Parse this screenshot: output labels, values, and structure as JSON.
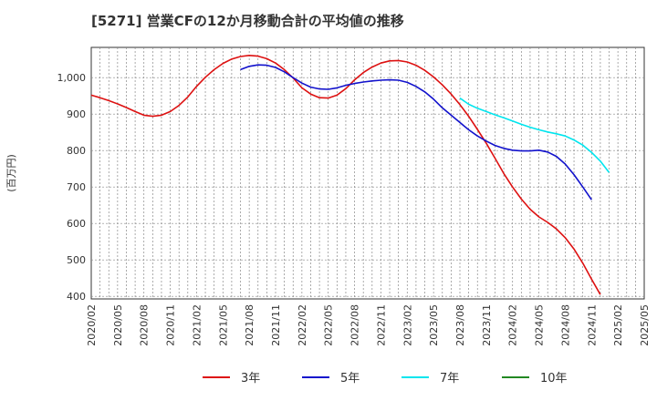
{
  "chart_data": {
    "type": "line",
    "title": "[5271]  営業CFの12か月移動合計の平均値の推移",
    "ylabel": "(百万円)",
    "xlabel": "",
    "ylim": [
      393,
      1083
    ],
    "yticks": [
      400,
      500,
      600,
      700,
      800,
      900,
      1000
    ],
    "ytick_labels": [
      "400",
      "500",
      "600",
      "700",
      "800",
      "900",
      "1,000"
    ],
    "x_range": [
      "2020-02",
      "2025-05"
    ],
    "xticks": [
      "2020/02",
      "2020/05",
      "2020/08",
      "2020/11",
      "2021/02",
      "2021/05",
      "2021/08",
      "2021/11",
      "2022/02",
      "2022/05",
      "2022/08",
      "2022/11",
      "2023/02",
      "2023/05",
      "2023/08",
      "2023/11",
      "2024/02",
      "2024/05",
      "2024/08",
      "2024/11",
      "2025/02",
      "2025/05"
    ],
    "grid": true,
    "legend_position": "bottom",
    "series": [
      {
        "name": "3年",
        "color": "#dd1111",
        "points": [
          [
            "2020-02",
            952
          ],
          [
            "2020-03",
            945
          ],
          [
            "2020-04",
            937
          ],
          [
            "2020-05",
            928
          ],
          [
            "2020-06",
            918
          ],
          [
            "2020-07",
            907
          ],
          [
            "2020-08",
            897
          ],
          [
            "2020-09",
            894
          ],
          [
            "2020-10",
            897
          ],
          [
            "2020-11",
            907
          ],
          [
            "2020-12",
            924
          ],
          [
            "2021-01",
            947
          ],
          [
            "2021-02",
            976
          ],
          [
            "2021-03",
            1001
          ],
          [
            "2021-04",
            1022
          ],
          [
            "2021-05",
            1039
          ],
          [
            "2021-06",
            1051
          ],
          [
            "2021-07",
            1058
          ],
          [
            "2021-08",
            1061
          ],
          [
            "2021-09",
            1059
          ],
          [
            "2021-10",
            1052
          ],
          [
            "2021-11",
            1040
          ],
          [
            "2021-12",
            1022
          ],
          [
            "2022-01",
            999
          ],
          [
            "2022-02",
            972
          ],
          [
            "2022-03",
            955
          ],
          [
            "2022-04",
            945
          ],
          [
            "2022-05",
            944
          ],
          [
            "2022-06",
            952
          ],
          [
            "2022-07",
            970
          ],
          [
            "2022-08",
            994
          ],
          [
            "2022-09",
            1014
          ],
          [
            "2022-10",
            1029
          ],
          [
            "2022-11",
            1040
          ],
          [
            "2022-12",
            1046
          ],
          [
            "2023-01",
            1047
          ],
          [
            "2023-02",
            1043
          ],
          [
            "2023-03",
            1034
          ],
          [
            "2023-04",
            1020
          ],
          [
            "2023-05",
            1002
          ],
          [
            "2023-06",
            980
          ],
          [
            "2023-07",
            955
          ],
          [
            "2023-08",
            926
          ],
          [
            "2023-09",
            894
          ],
          [
            "2023-10",
            858
          ],
          [
            "2023-11",
            820
          ],
          [
            "2023-12",
            779
          ],
          [
            "2024-01",
            737
          ],
          [
            "2024-02",
            700
          ],
          [
            "2024-03",
            667
          ],
          [
            "2024-04",
            639
          ],
          [
            "2024-05",
            618
          ],
          [
            "2024-06",
            603
          ],
          [
            "2024-07",
            585
          ],
          [
            "2024-08",
            561
          ],
          [
            "2024-09",
            530
          ],
          [
            "2024-10",
            491
          ],
          [
            "2024-11",
            447
          ],
          [
            "2024-12",
            405
          ]
        ]
      },
      {
        "name": "5年",
        "color": "#1111cc",
        "points": [
          [
            "2021-07",
            1022
          ],
          [
            "2021-08",
            1031
          ],
          [
            "2021-09",
            1035
          ],
          [
            "2021-10",
            1034
          ],
          [
            "2021-11",
            1028
          ],
          [
            "2021-12",
            1016
          ],
          [
            "2022-01",
            1000
          ],
          [
            "2022-02",
            985
          ],
          [
            "2022-03",
            974
          ],
          [
            "2022-04",
            969
          ],
          [
            "2022-05",
            968
          ],
          [
            "2022-06",
            972
          ],
          [
            "2022-07",
            979
          ],
          [
            "2022-08",
            984
          ],
          [
            "2022-09",
            988
          ],
          [
            "2022-10",
            991
          ],
          [
            "2022-11",
            993
          ],
          [
            "2022-12",
            994
          ],
          [
            "2023-01",
            993
          ],
          [
            "2023-02",
            987
          ],
          [
            "2023-03",
            976
          ],
          [
            "2023-04",
            961
          ],
          [
            "2023-05",
            941
          ],
          [
            "2023-06",
            917
          ],
          [
            "2023-07",
            897
          ],
          [
            "2023-08",
            877
          ],
          [
            "2023-09",
            857
          ],
          [
            "2023-10",
            840
          ],
          [
            "2023-11",
            826
          ],
          [
            "2023-12",
            814
          ],
          [
            "2024-01",
            806
          ],
          [
            "2024-02",
            801
          ],
          [
            "2024-03",
            799
          ],
          [
            "2024-04",
            799
          ],
          [
            "2024-05",
            801
          ],
          [
            "2024-06",
            796
          ],
          [
            "2024-07",
            784
          ],
          [
            "2024-08",
            763
          ],
          [
            "2024-09",
            734
          ],
          [
            "2024-10",
            700
          ],
          [
            "2024-11",
            665
          ]
        ]
      },
      {
        "name": "7年",
        "color": "#00e5ee",
        "points": [
          [
            "2023-08",
            944
          ],
          [
            "2023-09",
            927
          ],
          [
            "2023-10",
            916
          ],
          [
            "2023-11",
            907
          ],
          [
            "2023-12",
            898
          ],
          [
            "2024-01",
            890
          ],
          [
            "2024-02",
            881
          ],
          [
            "2024-03",
            872
          ],
          [
            "2024-04",
            864
          ],
          [
            "2024-05",
            857
          ],
          [
            "2024-06",
            851
          ],
          [
            "2024-07",
            846
          ],
          [
            "2024-08",
            840
          ],
          [
            "2024-09",
            829
          ],
          [
            "2024-10",
            815
          ],
          [
            "2024-11",
            795
          ],
          [
            "2024-12",
            771
          ],
          [
            "2025-01",
            740
          ]
        ]
      },
      {
        "name": "10年",
        "color": "#228822",
        "points": []
      }
    ]
  }
}
